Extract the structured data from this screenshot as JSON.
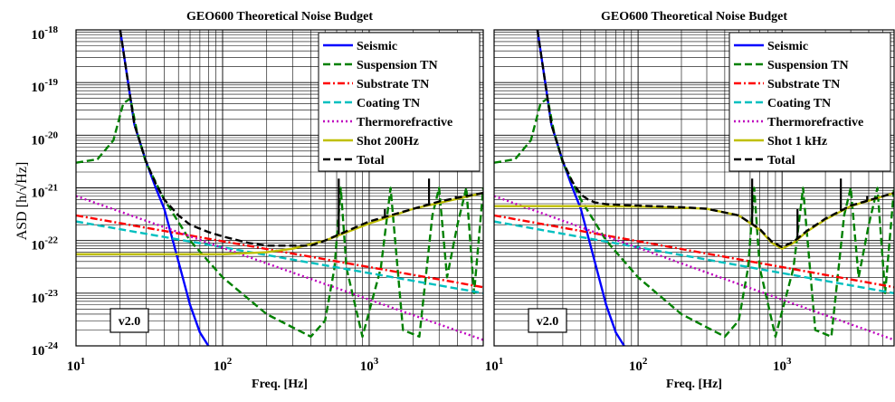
{
  "figure": {
    "ylabel": "ASD [h/√Hz]"
  },
  "chart_data": [
    {
      "type": "line",
      "title": "GEO600 Theoretical Noise Budget",
      "xlabel": "Freq. [Hz]",
      "ylabel": "ASD [h/√Hz]",
      "xscale": "log",
      "yscale": "log",
      "xlim": [
        10,
        6000
      ],
      "ylim": [
        1e-24,
        1e-18
      ],
      "grid": true,
      "legend_position": "top-right",
      "version_badge": "v2.0",
      "series": [
        {
          "name": "Seismic",
          "color": "#0000ff",
          "dash": "solid",
          "x": [
            20,
            25,
            30,
            35,
            40,
            50,
            60,
            70,
            80
          ],
          "y": [
            1e-18,
            1.6e-20,
            3.2e-21,
            1e-21,
            4e-22,
            4e-23,
            6e-24,
            1.8e-24,
            1e-24
          ]
        },
        {
          "name": "Suspension TN",
          "color": "#008000",
          "dash": "dashed",
          "x": [
            10,
            14,
            18,
            21,
            23.5,
            26,
            30,
            40,
            60,
            100,
            200,
            400,
            500,
            580,
            640,
            700,
            900,
            1200,
            1400,
            1700,
            2200,
            2700,
            3000,
            3400,
            4000,
            4600,
            5200,
            6000
          ],
          "y": [
            3e-21,
            3.5e-21,
            8e-21,
            4e-20,
            5e-20,
            1.2e-20,
            3e-21,
            6e-22,
            1e-22,
            2e-23,
            4e-24,
            1.5e-24,
            3e-24,
            3e-23,
            1e-21,
            3e-23,
            1.5e-24,
            3e-23,
            1e-21,
            2e-24,
            1.5e-24,
            3e-22,
            1e-21,
            2e-23,
            2e-22,
            1e-21,
            1e-23,
            1e-21
          ]
        },
        {
          "name": "Substrate TN",
          "color": "#ff0000",
          "dash": "dashdot",
          "x": [
            10,
            6000
          ],
          "y": [
            3e-22,
            1.3e-23
          ]
        },
        {
          "name": "Coating TN",
          "color": "#00bfbf",
          "dash": "dashed",
          "x": [
            10,
            6000
          ],
          "y": [
            2.3e-22,
            1e-23
          ]
        },
        {
          "name": "Thermorefractive",
          "color": "#bf00bf",
          "dash": "dotted",
          "x": [
            10,
            6000
          ],
          "y": [
            7e-22,
            1.3e-24
          ]
        },
        {
          "name": "Shot 200Hz",
          "color": "#bfbf00",
          "dash": "solid",
          "x": [
            10,
            100,
            200,
            300,
            500,
            1000,
            2000,
            6000
          ],
          "y": [
            5.5e-23,
            5.5e-23,
            6e-23,
            7e-23,
            1e-22,
            2.1e-22,
            4e-22,
            8e-22
          ]
        },
        {
          "name": "Total",
          "color": "#000000",
          "dash": "dashed",
          "x": [
            20,
            25,
            30,
            35,
            40,
            50,
            60,
            80,
            100,
            150,
            200,
            300,
            400,
            500,
            700,
            1000,
            2000,
            3000,
            4000,
            6000
          ],
          "y": [
            1e-18,
            1.6e-20,
            3.2e-21,
            1.2e-21,
            6e-22,
            3e-22,
            2e-22,
            1.45e-22,
            1.2e-22,
            9e-23,
            8e-23,
            8e-23,
            8e-23,
            1e-22,
            1.5e-22,
            2.3e-22,
            4e-22,
            5.5e-22,
            6.5e-22,
            8e-22
          ],
          "spikes": [
            [
              620,
              1.5e-21
            ],
            [
              1280,
              4e-22
            ],
            [
              2560,
              1.5e-21
            ],
            [
              3900,
              7e-22
            ]
          ]
        }
      ]
    },
    {
      "type": "line",
      "title": "GEO600 Theoretical Noise Budget",
      "xlabel": "Freq. [Hz]",
      "ylabel": "",
      "xscale": "log",
      "yscale": "log",
      "xlim": [
        10,
        6000
      ],
      "ylim": [
        1e-24,
        1e-18
      ],
      "grid": true,
      "legend_position": "top-right",
      "version_badge": "v2.0",
      "series": [
        {
          "name": "Seismic",
          "color": "#0000ff",
          "dash": "solid",
          "x": [
            20,
            25,
            30,
            35,
            40,
            50,
            60,
            70,
            80
          ],
          "y": [
            1e-18,
            1.6e-20,
            3.2e-21,
            1e-21,
            4e-22,
            4e-23,
            6e-24,
            1.8e-24,
            1e-24
          ]
        },
        {
          "name": "Suspension TN",
          "color": "#008000",
          "dash": "dashed",
          "x": [
            10,
            14,
            18,
            21,
            23.5,
            26,
            30,
            40,
            60,
            100,
            200,
            400,
            500,
            580,
            640,
            700,
            900,
            1200,
            1400,
            1700,
            2200,
            2700,
            3000,
            3400,
            4000,
            4600,
            5200,
            6000
          ],
          "y": [
            3e-21,
            3.5e-21,
            8e-21,
            4e-20,
            5e-20,
            1.2e-20,
            3e-21,
            6e-22,
            1e-22,
            2e-23,
            4e-24,
            1.5e-24,
            3e-24,
            3e-23,
            1e-21,
            3e-23,
            1.5e-24,
            3e-23,
            1e-21,
            2e-24,
            1.5e-24,
            3e-22,
            1e-21,
            2e-23,
            2e-22,
            1e-21,
            1e-23,
            1e-21
          ]
        },
        {
          "name": "Substrate TN",
          "color": "#ff0000",
          "dash": "dashdot",
          "x": [
            10,
            6000
          ],
          "y": [
            3e-22,
            1.3e-23
          ]
        },
        {
          "name": "Coating TN",
          "color": "#00bfbf",
          "dash": "dashed",
          "x": [
            10,
            6000
          ],
          "y": [
            2.3e-22,
            1e-23
          ]
        },
        {
          "name": "Thermorefractive",
          "color": "#bf00bf",
          "dash": "dotted",
          "x": [
            10,
            6000
          ],
          "y": [
            7e-22,
            1.3e-24
          ]
        },
        {
          "name": "Shot 1 kHz",
          "color": "#bfbf00",
          "dash": "solid",
          "x": [
            10,
            50,
            100,
            200,
            300,
            500,
            700,
            850,
            1000,
            1200,
            1500,
            2000,
            3000,
            6000
          ],
          "y": [
            4.5e-22,
            4.5e-22,
            4.4e-22,
            4.2e-22,
            4e-22,
            3e-22,
            1.6e-22,
            9e-23,
            7e-23,
            9e-23,
            1.5e-22,
            2.5e-22,
            4.5e-22,
            8e-22
          ]
        },
        {
          "name": "Total",
          "color": "#000000",
          "dash": "dashed",
          "x": [
            20,
            25,
            30,
            35,
            40,
            45,
            50,
            60,
            80,
            100,
            200,
            300,
            500,
            700,
            850,
            1000,
            1200,
            1500,
            2000,
            3000,
            6000
          ],
          "y": [
            1e-18,
            1.6e-20,
            3.2e-21,
            1.3e-21,
            7.5e-22,
            6e-22,
            5.3e-22,
            4.9e-22,
            4.7e-22,
            4.6e-22,
            4.3e-22,
            4e-22,
            3e-22,
            1.65e-22,
            9.5e-23,
            7.5e-23,
            9.5e-23,
            1.55e-22,
            2.6e-22,
            4.6e-22,
            8e-22
          ],
          "spikes": [
            [
              620,
              1.5e-21
            ],
            [
              1280,
              4e-22
            ],
            [
              2560,
              1.5e-21
            ],
            [
              3900,
              7e-22
            ]
          ]
        }
      ]
    }
  ]
}
